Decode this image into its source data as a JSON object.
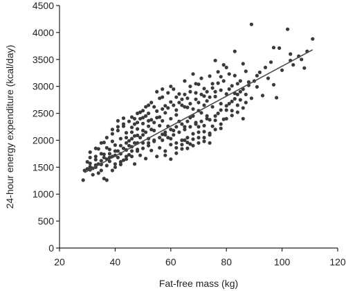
{
  "chart_data": {
    "type": "scatter",
    "title": "",
    "xlabel": "Fat-free mass (kg)",
    "ylabel": "24-hour energy expenditure (kcal/day)",
    "xlim": [
      20,
      120
    ],
    "ylim": [
      0,
      4500
    ],
    "xticks": [
      "20",
      "40",
      "60",
      "80",
      "100",
      "120"
    ],
    "yticks": [
      "0",
      "500",
      "1000",
      "1500",
      "2000",
      "2500",
      "3000",
      "3500",
      "4000",
      "4500"
    ],
    "grid": false,
    "legend": "none",
    "point_color": "#3a3a3a",
    "line_color": "#4a4a4a",
    "regression_line": {
      "x": [
        29,
        111
      ],
      "y": [
        1400,
        3680
      ]
    },
    "points": [
      [
        89,
        4150
      ],
      [
        102,
        4060
      ],
      [
        111,
        3880
      ],
      [
        97,
        3720
      ],
      [
        83,
        3650
      ],
      [
        99,
        3710
      ],
      [
        103,
        3480
      ],
      [
        106,
        3560
      ],
      [
        108,
        3340
      ],
      [
        104,
        3400
      ],
      [
        92,
        3260
      ],
      [
        95,
        3150
      ],
      [
        97,
        3030
      ],
      [
        91,
        2990
      ],
      [
        93,
        2830
      ],
      [
        98,
        2790
      ],
      [
        86,
        3420
      ],
      [
        87,
        3280
      ],
      [
        88,
        3080
      ],
      [
        84,
        3050
      ],
      [
        81,
        3230
      ],
      [
        82,
        3010
      ],
      [
        80,
        2860
      ],
      [
        85,
        2900
      ],
      [
        79,
        3400
      ],
      [
        76,
        3480
      ],
      [
        77,
        3270
      ],
      [
        74,
        3190
      ],
      [
        70,
        3040
      ],
      [
        86,
        2600
      ],
      [
        84,
        2520
      ],
      [
        78,
        2680
      ],
      [
        76,
        2810
      ],
      [
        72,
        2960
      ],
      [
        69,
        2880
      ],
      [
        67,
        3000
      ],
      [
        64,
        2760
      ],
      [
        66,
        2610
      ],
      [
        62,
        2560
      ],
      [
        63,
        2860
      ],
      [
        60,
        2710
      ],
      [
        58,
        2640
      ],
      [
        55,
        2540
      ],
      [
        57,
        2360
      ],
      [
        52,
        2500
      ],
      [
        50,
        2310
      ],
      [
        48,
        2210
      ],
      [
        46,
        2240
      ],
      [
        44,
        2140
      ],
      [
        45,
        1990
      ],
      [
        42,
        2030
      ],
      [
        40,
        1910
      ],
      [
        38,
        1830
      ],
      [
        39,
        2120
      ],
      [
        41,
        2360
      ],
      [
        43,
        2410
      ],
      [
        36,
        1740
      ],
      [
        35,
        1620
      ],
      [
        33,
        1540
      ],
      [
        31,
        1510
      ],
      [
        30,
        1470
      ],
      [
        29,
        1440
      ],
      [
        28.5,
        1260
      ],
      [
        32,
        1360
      ],
      [
        34,
        1390
      ],
      [
        36,
        1290
      ],
      [
        37,
        1260
      ],
      [
        39,
        1440
      ],
      [
        40,
        1560
      ],
      [
        43,
        1630
      ],
      [
        45,
        1730
      ],
      [
        47,
        1560
      ],
      [
        49,
        1720
      ],
      [
        51,
        1660
      ],
      [
        53,
        1810
      ],
      [
        55,
        1700
      ],
      [
        56,
        1860
      ],
      [
        58,
        1800
      ],
      [
        60,
        1920
      ],
      [
        62,
        1760
      ],
      [
        64,
        1840
      ],
      [
        65,
        2000
      ],
      [
        67,
        1930
      ],
      [
        70,
        2050
      ],
      [
        72,
        1980
      ],
      [
        74,
        2130
      ],
      [
        75,
        2260
      ],
      [
        73,
        2400
      ],
      [
        71,
        2510
      ],
      [
        69,
        2330
      ],
      [
        67,
        2420
      ],
      [
        65,
        2250
      ],
      [
        63,
        2350
      ],
      [
        61,
        2180
      ],
      [
        59,
        2260
      ],
      [
        57,
        2110
      ],
      [
        54,
        2180
      ],
      [
        52,
        2030
      ],
      [
        50,
        2100
      ],
      [
        48,
        1950
      ],
      [
        47,
        2080
      ],
      [
        46,
        1880
      ],
      [
        44,
        1820
      ],
      [
        42,
        1750
      ],
      [
        41,
        1680
      ],
      [
        38,
        1610
      ],
      [
        37,
        1530
      ],
      [
        35,
        1440
      ],
      [
        33,
        1700
      ],
      [
        31,
        1680
      ],
      [
        30,
        1600
      ],
      [
        34,
        1840
      ],
      [
        36,
        1960
      ],
      [
        46,
        2430
      ],
      [
        49,
        2520
      ],
      [
        51,
        2620
      ],
      [
        53,
        2700
      ],
      [
        56,
        2780
      ],
      [
        59,
        2880
      ],
      [
        61,
        2950
      ],
      [
        65,
        3100
      ],
      [
        68,
        3230
      ],
      [
        71,
        3150
      ],
      [
        73,
        2730
      ],
      [
        75,
        2620
      ],
      [
        77,
        2500
      ],
      [
        79,
        2390
      ],
      [
        80,
        2560
      ],
      [
        82,
        2460
      ],
      [
        83,
        2770
      ],
      [
        81,
        2680
      ],
      [
        78,
        2930
      ],
      [
        75,
        3050
      ],
      [
        72,
        2820
      ],
      [
        70,
        2700
      ],
      [
        68,
        2580
      ],
      [
        66,
        2780
      ],
      [
        64,
        2650
      ],
      [
        62,
        2470
      ],
      [
        60,
        2400
      ],
      [
        58,
        2510
      ],
      [
        56,
        2430
      ],
      [
        54,
        2330
      ],
      [
        52,
        2260
      ],
      [
        50,
        2180
      ],
      [
        48,
        2090
      ],
      [
        46,
        2030
      ],
      [
        44,
        1950
      ],
      [
        43,
        2260
      ],
      [
        41,
        2180
      ],
      [
        39,
        1980
      ],
      [
        37,
        1860
      ],
      [
        35,
        1750
      ],
      [
        33,
        1640
      ],
      [
        31,
        1570
      ],
      [
        57,
        2000
      ],
      [
        59,
        2050
      ],
      [
        61,
        2100
      ],
      [
        63,
        2150
      ],
      [
        65,
        2200
      ],
      [
        67,
        2250
      ],
      [
        69,
        2300
      ],
      [
        71,
        2350
      ],
      [
        73,
        2450
      ],
      [
        76,
        2370
      ],
      [
        78,
        2220
      ],
      [
        74,
        1950
      ],
      [
        72,
        2160
      ],
      [
        70,
        2250
      ],
      [
        68,
        2120
      ],
      [
        66,
        2050
      ],
      [
        64,
        2000
      ],
      [
        62,
        1950
      ],
      [
        60,
        2030
      ],
      [
        58,
        2150
      ],
      [
        56,
        2270
      ],
      [
        54,
        1980
      ],
      [
        52,
        1900
      ],
      [
        50,
        1950
      ],
      [
        48,
        1830
      ],
      [
        46,
        1800
      ],
      [
        44,
        1700
      ],
      [
        42,
        1600
      ],
      [
        40,
        1720
      ],
      [
        38,
        1680
      ],
      [
        47,
        2300
      ],
      [
        49,
        2400
      ],
      [
        51,
        2450
      ],
      [
        53,
        2380
      ],
      [
        55,
        2420
      ],
      [
        57,
        2580
      ],
      [
        59,
        2600
      ],
      [
        61,
        2650
      ],
      [
        63,
        2700
      ],
      [
        65,
        2620
      ],
      [
        67,
        2680
      ],
      [
        69,
        2760
      ],
      [
        71,
        2850
      ],
      [
        73,
        2900
      ],
      [
        75,
        2970
      ],
      [
        77,
        3060
      ],
      [
        79,
        3100
      ],
      [
        81,
        2950
      ],
      [
        83,
        2870
      ],
      [
        85,
        2750
      ],
      [
        87,
        2700
      ],
      [
        57,
        2800
      ],
      [
        54,
        2620
      ],
      [
        52,
        2360
      ],
      [
        50,
        2420
      ],
      [
        48,
        2330
      ],
      [
        46,
        2150
      ],
      [
        44,
        2050
      ],
      [
        42,
        1900
      ],
      [
        40,
        1800
      ],
      [
        38,
        1750
      ],
      [
        36,
        1680
      ],
      [
        34,
        1560
      ],
      [
        32,
        1480
      ],
      [
        58,
        1720
      ],
      [
        60,
        1650
      ],
      [
        62,
        1860
      ],
      [
        64,
        1920
      ],
      [
        66,
        1960
      ],
      [
        68,
        2020
      ],
      [
        70,
        2150
      ],
      [
        72,
        2270
      ],
      [
        74,
        2380
      ],
      [
        76,
        2450
      ],
      [
        78,
        2560
      ],
      [
        80,
        2640
      ],
      [
        82,
        2720
      ],
      [
        84,
        2850
      ],
      [
        86,
        2950
      ],
      [
        88,
        3020
      ],
      [
        90,
        3100
      ],
      [
        94,
        3350
      ],
      [
        96,
        3450
      ],
      [
        100,
        3300
      ],
      [
        103,
        3600
      ],
      [
        107,
        3500
      ],
      [
        109,
        3650
      ],
      [
        91,
        3200
      ],
      [
        89,
        2780
      ],
      [
        87,
        2850
      ],
      [
        85,
        3100
      ],
      [
        83,
        3200
      ],
      [
        80,
        3350
      ],
      [
        78,
        3180
      ],
      [
        76,
        2900
      ],
      [
        74,
        2800
      ],
      [
        72,
        2650
      ],
      [
        70,
        2550
      ],
      [
        68,
        2450
      ],
      [
        66,
        2350
      ],
      [
        64,
        2300
      ],
      [
        62,
        2250
      ],
      [
        60,
        2200
      ],
      [
        58,
        2100
      ],
      [
        56,
        2050
      ],
      [
        54,
        2000
      ],
      [
        52,
        1950
      ],
      [
        50,
        1850
      ],
      [
        48,
        1800
      ],
      [
        46,
        1700
      ],
      [
        44,
        1650
      ],
      [
        42,
        1550
      ],
      [
        40,
        1500
      ],
      [
        55,
        2900
      ],
      [
        57,
        2950
      ],
      [
        60,
        3000
      ],
      [
        62,
        2800
      ],
      [
        65,
        2850
      ],
      [
        67,
        2900
      ],
      [
        69,
        3050
      ],
      [
        52,
        2650
      ],
      [
        50,
        2550
      ],
      [
        48,
        2500
      ],
      [
        47,
        2400
      ],
      [
        45,
        2350
      ],
      [
        43,
        2300
      ],
      [
        41,
        2250
      ],
      [
        39,
        2200
      ],
      [
        37,
        2050
      ],
      [
        35,
        1950
      ],
      [
        33,
        1850
      ],
      [
        31,
        1780
      ],
      [
        66,
        1850
      ],
      [
        68,
        1900
      ],
      [
        70,
        1950
      ],
      [
        72,
        2050
      ],
      [
        74,
        2100
      ],
      [
        76,
        2200
      ],
      [
        78,
        2300
      ],
      [
        80,
        2400
      ],
      [
        82,
        2550
      ],
      [
        84,
        2650
      ],
      [
        86,
        2400
      ],
      [
        53,
        2200
      ],
      [
        51,
        2150
      ],
      [
        49,
        2050
      ],
      [
        47,
        1950
      ],
      [
        45,
        1900
      ],
      [
        43,
        1850
      ],
      [
        41,
        1800
      ],
      [
        39,
        1700
      ],
      [
        37,
        1650
      ],
      [
        35,
        1550
      ],
      [
        33,
        1500
      ],
      [
        31,
        1450
      ]
    ]
  }
}
